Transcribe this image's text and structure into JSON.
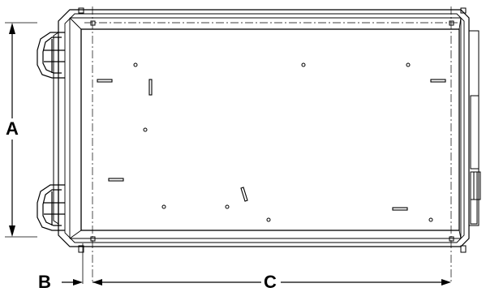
{
  "diagram": {
    "dimension_labels": {
      "a": "A",
      "b": "B",
      "c": "C"
    },
    "line_color": "#000000",
    "background": "#ffffff"
  }
}
